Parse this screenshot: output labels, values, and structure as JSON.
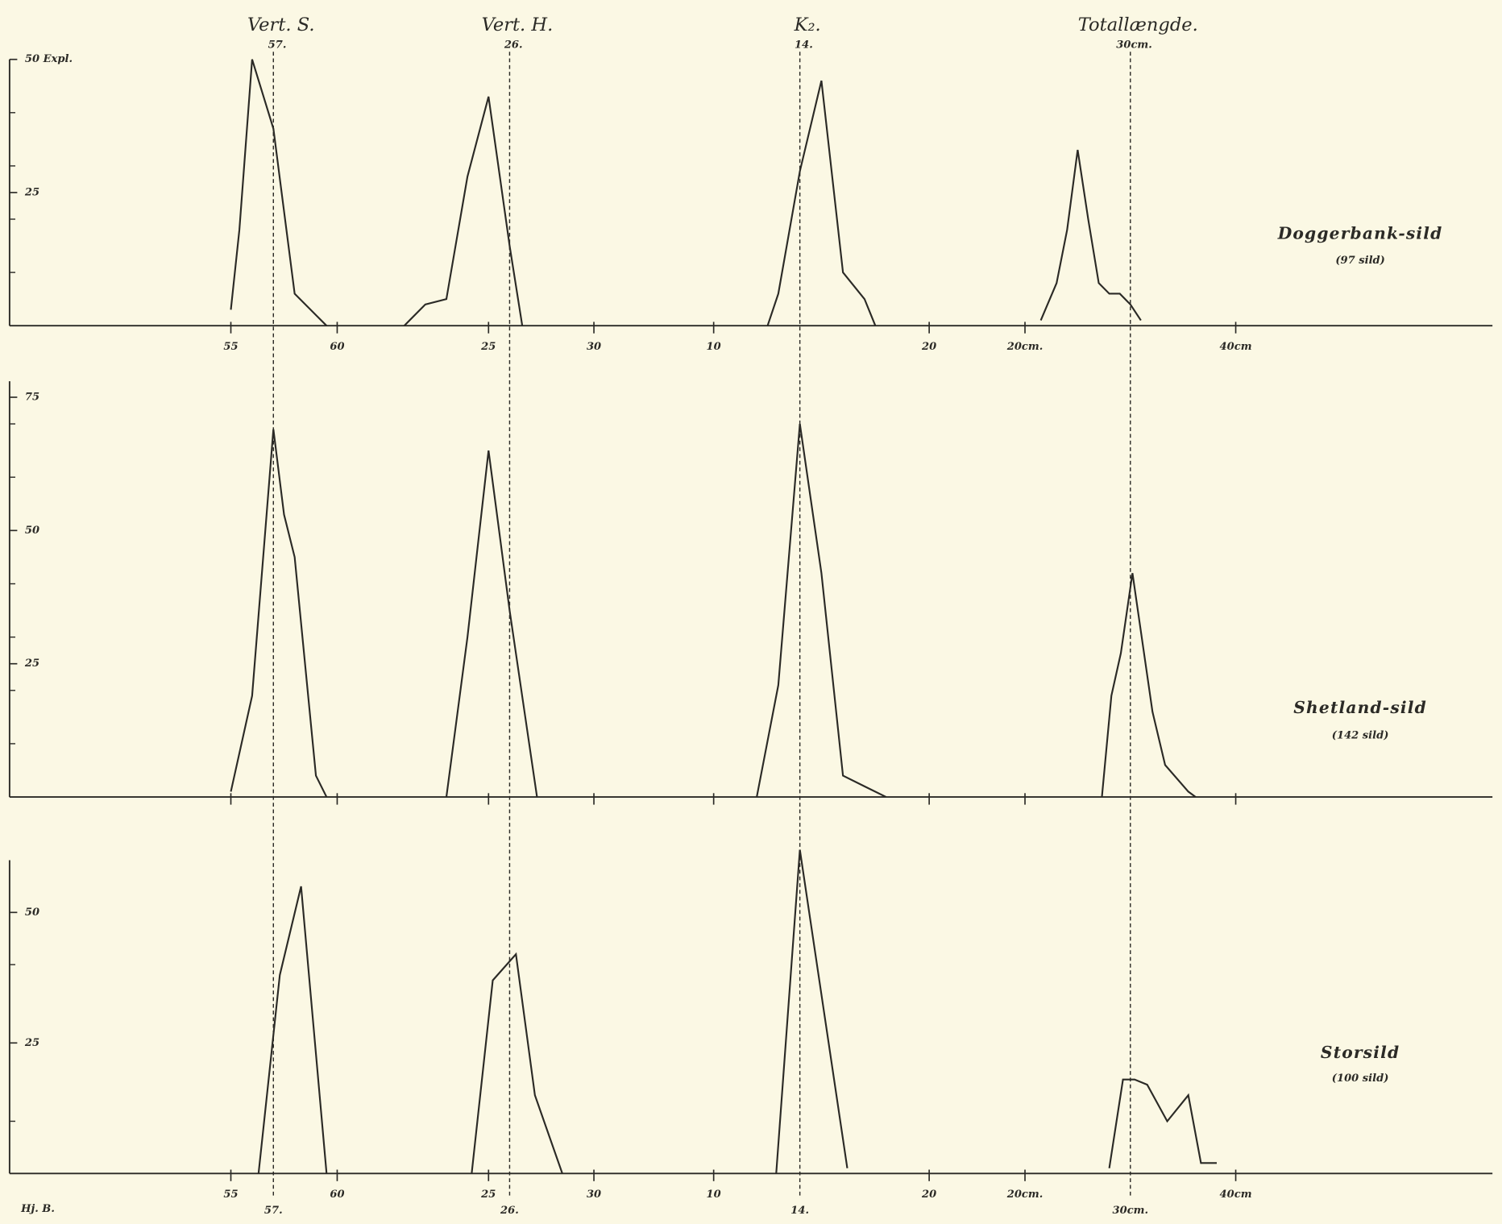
{
  "chart_data": {
    "type": "line",
    "columns": [
      {
        "title": "Vert. S.",
        "reference": {
          "value": 57,
          "label": "57."
        },
        "xlim": [
          55,
          60
        ],
        "xticks": [
          55,
          60
        ]
      },
      {
        "title": "Vert. H.",
        "reference": {
          "value": 26,
          "label": "26."
        },
        "xlim": [
          25,
          30
        ],
        "xticks": [
          25,
          30
        ]
      },
      {
        "title": "K₂.",
        "reference": {
          "value": 14,
          "label": "14."
        },
        "xlim": [
          10,
          20
        ],
        "xticks": [
          10,
          20
        ]
      },
      {
        "title": "Totallængde.",
        "reference": {
          "value": 30,
          "label": "30cm."
        },
        "xlim": [
          20,
          40
        ],
        "xticks": [
          {
            "value": 20,
            "label": "20cm."
          },
          {
            "value": 40,
            "label": "40cm"
          }
        ]
      }
    ],
    "color": "#2b2a26",
    "panels": [
      {
        "name": "Doggerbank-sild",
        "count": "(97 sild)",
        "ylim": [
          0,
          50
        ],
        "yticks": [
          {
            "value": 50,
            "label": "50 Expl."
          },
          25
        ],
        "minor_yticks": [
          10,
          20,
          30,
          40
        ],
        "xtick_labels": true,
        "series": [
          {
            "x": [
              55,
              55.4,
              56,
              57,
              58,
              59,
              59.5
            ],
            "values": [
              3,
              18,
              50,
              37,
              6,
              2,
              0
            ]
          },
          {
            "x": [
              21,
              22,
              23,
              24,
              25,
              26,
              26.6
            ],
            "values": [
              0,
              4,
              5,
              28,
              43,
              15,
              0
            ]
          },
          {
            "x": [
              12.5,
              13,
              14,
              15,
              16,
              17,
              17.5
            ],
            "values": [
              0,
              6,
              29,
              46,
              10,
              5,
              0
            ]
          },
          {
            "x": [
              21.5,
              23,
              24,
              25,
              26,
              27,
              28,
              29,
              30,
              31
            ],
            "values": [
              1,
              8,
              18,
              33,
              20,
              8,
              6,
              6,
              4,
              1
            ]
          }
        ]
      },
      {
        "name": "Shetland-sild",
        "count": "(142 sild)",
        "ylim": [
          0,
          78
        ],
        "yticks": [
          75,
          50,
          25
        ],
        "minor_yticks": [
          10,
          20,
          30,
          40,
          60,
          70
        ],
        "xtick_labels": false,
        "series": [
          {
            "x": [
              55,
              56,
              57,
              57.5,
              58,
              59,
              59.5
            ],
            "values": [
              1,
              19,
              69,
              53,
              45,
              4,
              0
            ]
          },
          {
            "x": [
              23,
              24,
              25,
              26,
              27.3
            ],
            "values": [
              0,
              30,
              65,
              35,
              0
            ]
          },
          {
            "x": [
              12,
              13,
              14,
              15,
              16,
              17,
              18
            ],
            "values": [
              0,
              21,
              70,
              42,
              4,
              2,
              0
            ]
          },
          {
            "x": [
              27.3,
              28.2,
              29.1,
              30.2,
              32.1,
              33.3,
              35.5,
              36.2
            ],
            "values": [
              0,
              19,
              27,
              42,
              16,
              6,
              1,
              0
            ]
          }
        ]
      },
      {
        "name": "Storsild",
        "count": "(100 sild)",
        "ylim": [
          0,
          60
        ],
        "yticks": [
          50,
          25
        ],
        "minor_yticks": [
          10,
          40
        ],
        "xtick_labels": true,
        "series": [
          {
            "x": [
              56.3,
              57.3,
              58.3,
              59.5
            ],
            "values": [
              0,
              38,
              55,
              0
            ]
          },
          {
            "x": [
              24.2,
              25.2,
              26.3,
              27.2,
              28.5
            ],
            "values": [
              0,
              37,
              42,
              15,
              0
            ]
          },
          {
            "x": [
              12.9,
              14,
              16.2
            ],
            "values": [
              0,
              62,
              1
            ]
          },
          {
            "x": [
              28,
              29.3,
              30.4,
              31.6,
              33.5,
              35.5,
              36.7,
              38.2
            ],
            "values": [
              1,
              18,
              18,
              17,
              10,
              15,
              2,
              2
            ]
          }
        ]
      }
    ],
    "signature": "Hj. B."
  }
}
